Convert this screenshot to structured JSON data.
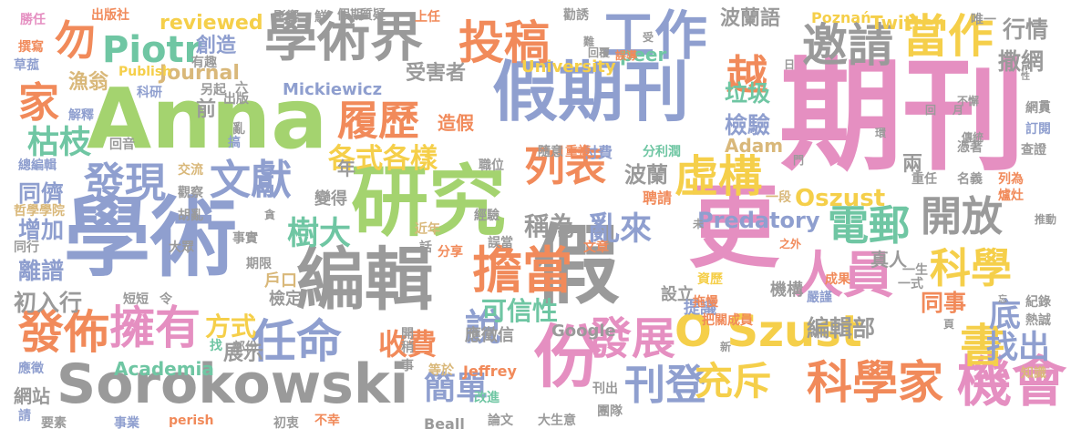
{
  "palette": {
    "pink": "#e58fc1",
    "green": "#a4d36f",
    "gray": "#9a9a9a",
    "orange": "#f18a5a",
    "yellow": "#f5cf4a",
    "tan": "#d9b87a",
    "teal": "#6fc6a3",
    "blue": "#8f9fcf"
  },
  "words": [
    {
      "text": "期刊",
      "color": "pink"
    },
    {
      "text": "Anna",
      "color": "green"
    },
    {
      "text": "學術",
      "color": "blue"
    },
    {
      "text": "Sorokowski",
      "color": "gray"
    },
    {
      "text": "研究",
      "color": "green"
    },
    {
      "text": "假期刊",
      "color": "blue"
    },
    {
      "text": "學術界",
      "color": "gray"
    },
    {
      "text": "更",
      "color": "pink"
    },
    {
      "text": "O Szust",
      "color": "yellow"
    },
    {
      "text": "編輯",
      "color": "gray"
    },
    {
      "text": "假",
      "color": "gray"
    },
    {
      "text": "份",
      "color": "pink"
    },
    {
      "text": "工作",
      "color": "blue"
    },
    {
      "text": "投稿",
      "color": "orange"
    },
    {
      "text": "邀請",
      "color": "gray"
    },
    {
      "text": "當作",
      "color": "yellow"
    },
    {
      "text": "擔當",
      "color": "orange"
    },
    {
      "text": "人員",
      "color": "pink"
    },
    {
      "text": "科學家",
      "color": "orange"
    },
    {
      "text": "機會",
      "color": "pink"
    },
    {
      "text": "文獻",
      "color": "blue"
    },
    {
      "text": "發現",
      "color": "blue"
    },
    {
      "text": "發佈",
      "color": "orange"
    },
    {
      "text": "擁有",
      "color": "pink"
    },
    {
      "text": "任命",
      "color": "blue"
    },
    {
      "text": "Piotr",
      "color": "teal"
    },
    {
      "text": "履歷",
      "color": "orange"
    },
    {
      "text": "列表",
      "color": "orange"
    },
    {
      "text": "虛構",
      "color": "yellow"
    },
    {
      "text": "電郵",
      "color": "teal"
    },
    {
      "text": "開放",
      "color": "gray"
    },
    {
      "text": "科學",
      "color": "yellow"
    },
    {
      "text": "發展",
      "color": "pink"
    },
    {
      "text": "刊登",
      "color": "blue"
    },
    {
      "text": "說",
      "color": "blue"
    },
    {
      "text": "書",
      "color": "yellow"
    },
    {
      "text": "充斥",
      "color": "yellow"
    },
    {
      "text": "越",
      "color": "orange"
    },
    {
      "text": "勿",
      "color": "orange"
    },
    {
      "text": "家",
      "color": "orange"
    },
    {
      "text": "枯枝",
      "color": "teal"
    },
    {
      "text": "樹大",
      "color": "teal"
    },
    {
      "text": "各式各樣",
      "color": "yellow"
    },
    {
      "text": "簡單",
      "color": "blue"
    },
    {
      "text": "收費",
      "color": "orange"
    },
    {
      "text": "可信性",
      "color": "teal"
    },
    {
      "text": "亂來",
      "color": "blue"
    },
    {
      "text": "稱為",
      "color": "gray"
    },
    {
      "text": "Oszust",
      "color": "yellow"
    },
    {
      "text": "Predatory",
      "color": "blue"
    },
    {
      "text": "找出",
      "color": "blue"
    },
    {
      "text": "底",
      "color": "blue"
    },
    {
      "text": "方式",
      "color": "yellow"
    },
    {
      "text": "行情",
      "color": "gray"
    },
    {
      "text": "撒網",
      "color": "gray"
    },
    {
      "text": "編輯部",
      "color": "gray"
    },
    {
      "text": "同事",
      "color": "orange"
    },
    {
      "text": "增加",
      "color": "blue"
    },
    {
      "text": "同儕",
      "color": "blue"
    },
    {
      "text": "離譜",
      "color": "blue"
    },
    {
      "text": "初入行",
      "color": "gray"
    },
    {
      "text": "Journal",
      "color": "tan"
    },
    {
      "text": "reviewed",
      "color": "yellow"
    },
    {
      "text": "Twitter",
      "color": "yellow"
    },
    {
      "text": "Academia",
      "color": "teal"
    },
    {
      "text": "Mickiewicz",
      "color": "blue"
    },
    {
      "text": "波蘭語",
      "color": "gray"
    },
    {
      "text": "波蘭",
      "color": "gray"
    },
    {
      "text": "垃圾",
      "color": "teal"
    },
    {
      "text": "檢驗",
      "color": "blue"
    },
    {
      "text": "Adam",
      "color": "tan"
    },
    {
      "text": "受害者",
      "color": "gray"
    },
    {
      "text": "漁翁",
      "color": "tan"
    },
    {
      "text": "創造",
      "color": "blue"
    },
    {
      "text": "造假",
      "color": "orange"
    },
    {
      "text": "展示",
      "color": "gray"
    },
    {
      "text": "前",
      "color": "gray"
    },
    {
      "text": "peer",
      "color": "teal"
    },
    {
      "text": "University",
      "color": "yellow"
    },
    {
      "text": "Google",
      "color": "gray"
    },
    {
      "text": "Jeffrey",
      "color": "orange"
    },
    {
      "text": "Beall",
      "color": "gray"
    },
    {
      "text": "Poznań",
      "color": "yellow"
    },
    {
      "text": "Publish",
      "color": "yellow"
    },
    {
      "text": "perish",
      "color": "orange"
    },
    {
      "text": "網站",
      "color": "gray"
    },
    {
      "text": "年",
      "color": "gray"
    },
    {
      "text": "兩",
      "color": "gray"
    },
    {
      "text": "真人",
      "color": "gray"
    },
    {
      "text": "聘請",
      "color": "orange"
    },
    {
      "text": "付費",
      "color": "blue"
    },
    {
      "text": "應徵信",
      "color": "gray"
    },
    {
      "text": "設立",
      "color": "gray"
    },
    {
      "text": "提議",
      "color": "blue"
    },
    {
      "text": "機構",
      "color": "gray"
    },
    {
      "text": "變得",
      "color": "gray"
    },
    {
      "text": "戶口",
      "color": "tan"
    },
    {
      "text": "檢定",
      "color": "gray"
    },
    {
      "text": "勝任",
      "color": "pink"
    },
    {
      "text": "出版社",
      "color": "orange"
    },
    {
      "text": "影響",
      "color": "gray"
    },
    {
      "text": "鮮",
      "color": "gray"
    },
    {
      "text": "假期",
      "color": "gray"
    },
    {
      "text": "質疑",
      "color": "gray"
    },
    {
      "text": "上任",
      "color": "orange"
    },
    {
      "text": "勸誘",
      "color": "gray"
    },
    {
      "text": "唯一",
      "color": "gray"
    },
    {
      "text": "撰寫",
      "color": "orange"
    },
    {
      "text": "草菰",
      "color": "blue"
    },
    {
      "text": "有趣",
      "color": "gray"
    },
    {
      "text": "科研",
      "color": "blue"
    },
    {
      "text": "解釋",
      "color": "blue"
    },
    {
      "text": "回音",
      "color": "gray"
    },
    {
      "text": "總編輯",
      "color": "blue"
    },
    {
      "text": "交流",
      "color": "tan"
    },
    {
      "text": "觀察",
      "color": "gray"
    },
    {
      "text": "哲學學院",
      "color": "tan"
    },
    {
      "text": "胡亂",
      "color": "gray"
    },
    {
      "text": "同行",
      "color": "gray"
    },
    {
      "text": "大眾",
      "color": "gray"
    },
    {
      "text": "事實",
      "color": "gray"
    },
    {
      "text": "期限",
      "color": "gray"
    },
    {
      "text": "短短",
      "color": "gray"
    },
    {
      "text": "令",
      "color": "gray"
    },
    {
      "text": "部份",
      "color": "gray"
    },
    {
      "text": "找",
      "color": "teal"
    },
    {
      "text": "應徵",
      "color": "blue"
    },
    {
      "text": "請",
      "color": "blue"
    },
    {
      "text": "要素",
      "color": "gray"
    },
    {
      "text": "事業",
      "color": "blue"
    },
    {
      "text": "初衷",
      "color": "gray"
    },
    {
      "text": "不幸",
      "color": "orange"
    },
    {
      "text": "另起",
      "color": "gray"
    },
    {
      "text": "出版",
      "color": "gray"
    },
    {
      "text": "搞",
      "color": "blue"
    },
    {
      "text": "亂",
      "color": "gray"
    },
    {
      "text": "六",
      "color": "gray"
    },
    {
      "text": "隨意",
      "color": "gray"
    },
    {
      "text": "重複",
      "color": "orange"
    },
    {
      "text": "分利潤",
      "color": "teal"
    },
    {
      "text": "職位",
      "color": "gray"
    },
    {
      "text": "經驗",
      "color": "gray"
    },
    {
      "text": "誤當",
      "color": "gray"
    },
    {
      "text": "文章",
      "color": "orange"
    },
    {
      "text": "分享",
      "color": "orange"
    },
    {
      "text": "話",
      "color": "gray"
    },
    {
      "text": "近年",
      "color": "tan"
    },
    {
      "text": "改進",
      "color": "teal"
    },
    {
      "text": "論文",
      "color": "gray"
    },
    {
      "text": "大生意",
      "color": "gray"
    },
    {
      "text": "團隊",
      "color": "gray"
    },
    {
      "text": "刊出",
      "color": "gray"
    },
    {
      "text": "等於",
      "color": "tan"
    },
    {
      "text": "事",
      "color": "gray"
    },
    {
      "text": "稍",
      "color": "gray"
    },
    {
      "text": "開",
      "color": "gray"
    },
    {
      "text": "資歷",
      "color": "yellow"
    },
    {
      "text": "成果",
      "color": "orange"
    },
    {
      "text": "嚴謹",
      "color": "blue"
    },
    {
      "text": "拖慢",
      "color": "orange"
    },
    {
      "text": "把關成員",
      "color": "orange"
    },
    {
      "text": "一生",
      "color": "gray"
    },
    {
      "text": "一式",
      "color": "gray"
    },
    {
      "text": "一段",
      "color": "tan"
    },
    {
      "text": "重任",
      "color": "gray"
    },
    {
      "text": "名義",
      "color": "gray"
    },
    {
      "text": "列為",
      "color": "orange"
    },
    {
      "text": "爐灶",
      "color": "orange"
    },
    {
      "text": "推動",
      "color": "gray"
    },
    {
      "text": "紀錄",
      "color": "gray"
    },
    {
      "text": "熱誠",
      "color": "gray"
    },
    {
      "text": "知識",
      "color": "tan"
    },
    {
      "text": "訂閱",
      "color": "blue"
    },
    {
      "text": "查證",
      "color": "gray"
    },
    {
      "text": "傳統",
      "color": "gray"
    },
    {
      "text": "憑著",
      "color": "gray"
    },
    {
      "text": "網頁",
      "color": "gray"
    },
    {
      "text": "誤導",
      "color": "orange"
    },
    {
      "text": "受",
      "color": "gray"
    },
    {
      "text": "難",
      "color": "gray"
    },
    {
      "text": "回覆",
      "color": "gray"
    },
    {
      "text": "之外",
      "color": "orange"
    },
    {
      "text": "未",
      "color": "gray"
    },
    {
      "text": "新",
      "color": "gray"
    },
    {
      "text": "忘",
      "color": "gray"
    },
    {
      "text": "性",
      "color": "gray"
    },
    {
      "text": "員",
      "color": "gray"
    },
    {
      "text": "門",
      "color": "gray"
    },
    {
      "text": "日",
      "color": "gray"
    },
    {
      "text": "月",
      "color": "gray"
    },
    {
      "text": "回",
      "color": "gray"
    },
    {
      "text": "環",
      "color": "gray"
    },
    {
      "text": "不懈",
      "color": "gray"
    },
    {
      "text": "頁",
      "color": "gray"
    },
    {
      "text": "貪",
      "color": "gray"
    }
  ]
}
